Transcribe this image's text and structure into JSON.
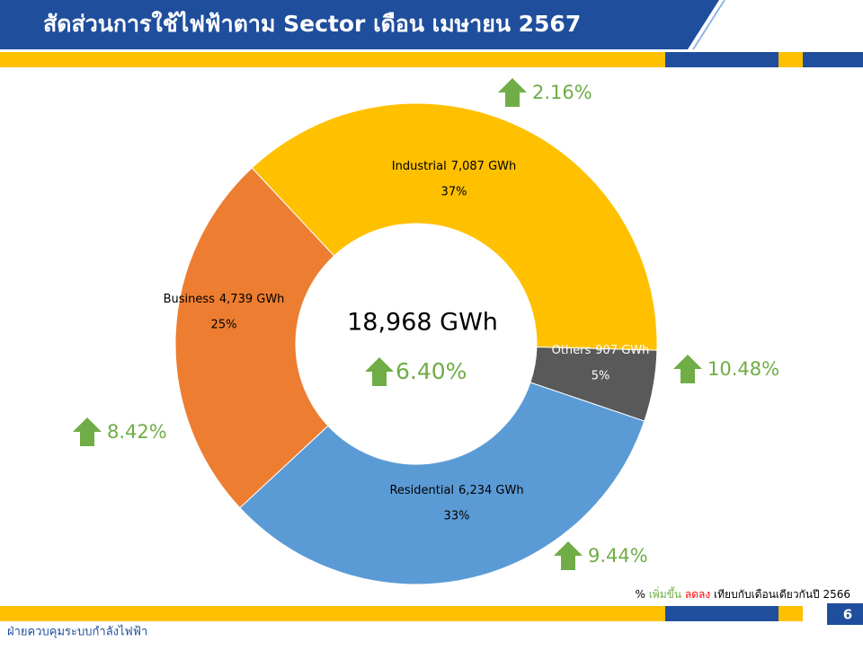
{
  "chart_data": {
    "type": "donut",
    "title": "สัดส่วนการใช้ไฟฟ้าตาม Sector เดือน เมษายน 2567",
    "categories": [
      "Industrial",
      "Others",
      "Residential",
      "Business"
    ],
    "values": [
      7087,
      907,
      6234,
      4739
    ],
    "value_labels": [
      "7,087 GWh",
      "907 GWh",
      "6,234 GWh",
      "4,739 GWh"
    ],
    "percents": [
      37,
      5,
      33,
      25
    ],
    "percent_labels": [
      "37%",
      "5%",
      "33%",
      "25%"
    ],
    "colors": [
      "#FFC000",
      "#595959",
      "#5B9BD5",
      "#ED7D31"
    ],
    "growth": [
      2.16,
      10.48,
      9.44,
      8.42
    ],
    "growth_labels": [
      "2.16%",
      "10.48%",
      "9.44%",
      "8.42%"
    ],
    "total": 18968,
    "total_label": "18,968 GWh",
    "total_growth": 6.4,
    "total_growth_label": "6.40%",
    "note": {
      "prefix": "%",
      "up": "เพิ่มขึ้น",
      "down": "ลดลง",
      "suffix": "เทียบกับเดือนเดียวกันปี 2566"
    },
    "footer": "ฝ่ายควบคุมระบบกำลังไฟฟ้า",
    "page_number": "6"
  }
}
